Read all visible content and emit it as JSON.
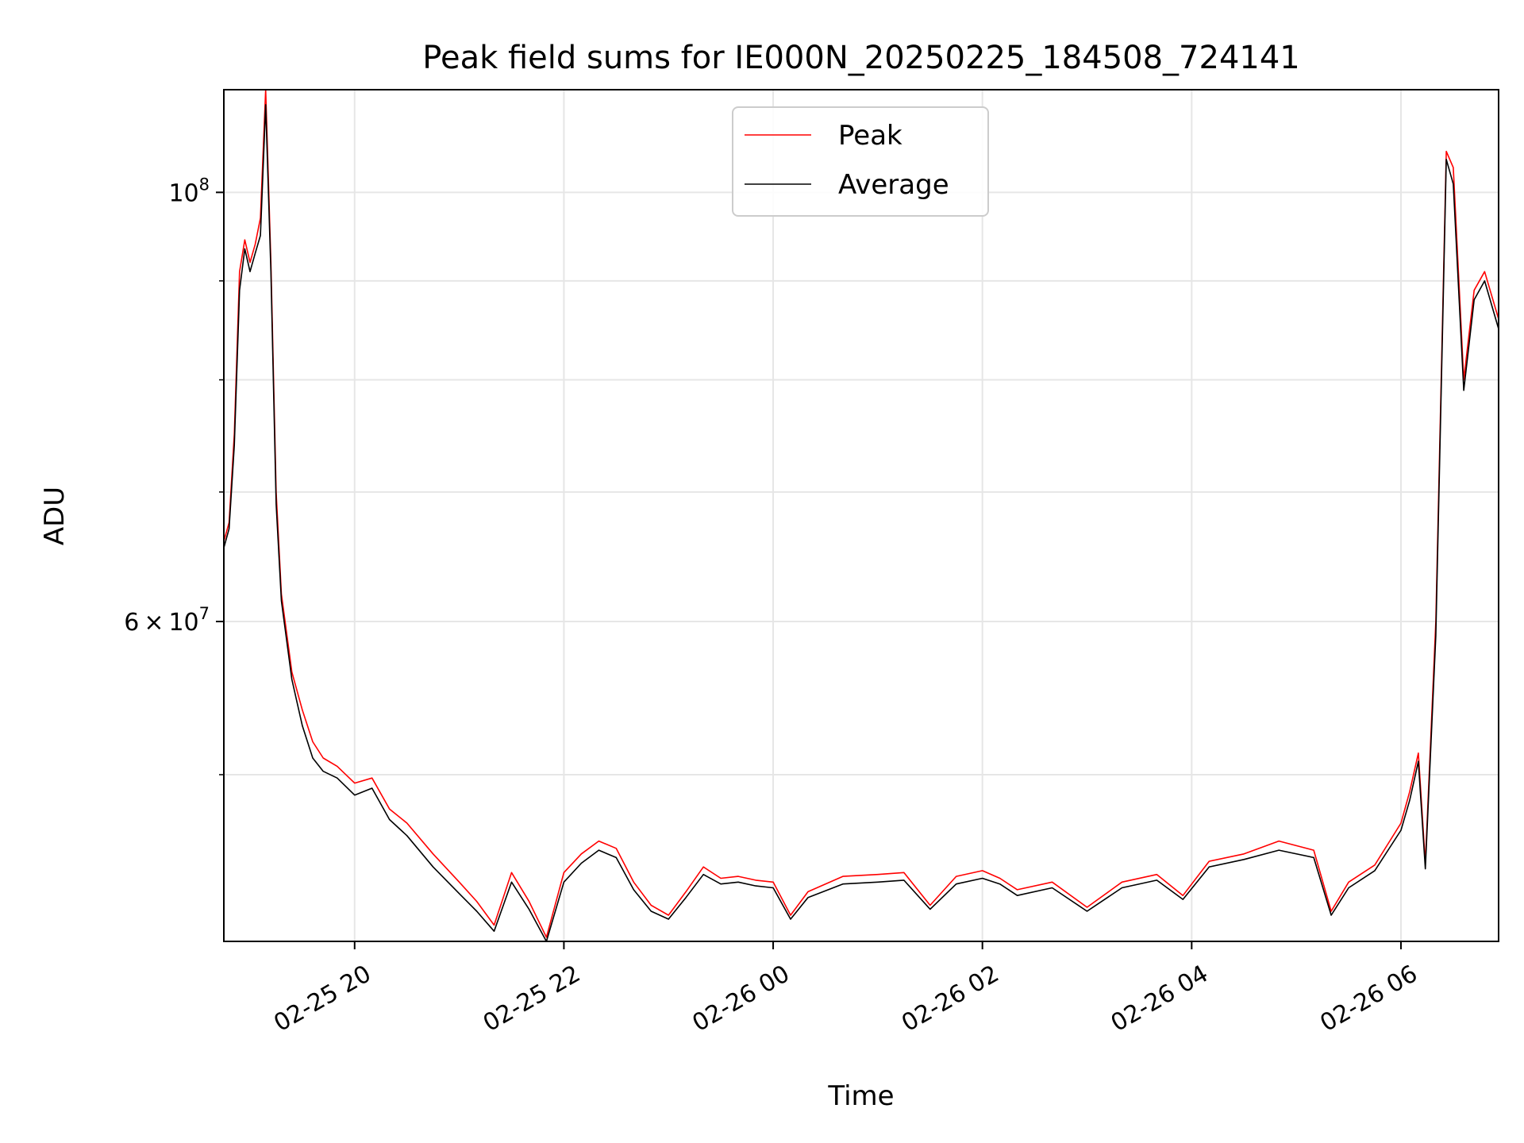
{
  "chart_data": {
    "type": "line",
    "title": "Peak field sums for IE000N_20250225_184508_724141",
    "xlabel": "Time",
    "ylabel": "ADU",
    "y_scale": "log",
    "grid": true,
    "legend_placement": "upper-center",
    "xlim": [
      "2025-02-25 18:45",
      "2025-02-26 06:56"
    ],
    "ylim": [
      41000000,
      113000000
    ],
    "x_ticks": [
      {
        "value": "2025-02-25 20:00",
        "label": "02-25 20"
      },
      {
        "value": "2025-02-25 22:00",
        "label": "02-25 22"
      },
      {
        "value": "2025-02-26 00:00",
        "label": "02-26 00"
      },
      {
        "value": "2025-02-26 02:00",
        "label": "02-26 02"
      },
      {
        "value": "2025-02-26 04:00",
        "label": "02-26 04"
      },
      {
        "value": "2025-02-26 06:00",
        "label": "02-26 06"
      }
    ],
    "y_major_ticks": [
      {
        "value": 100000000,
        "base": "10",
        "exp": "8"
      },
      {
        "value": 60000000,
        "base": "6 × 10",
        "exp": "7"
      }
    ],
    "y_minor_ticks": [
      50000000,
      70000000,
      80000000,
      90000000
    ],
    "series": [
      {
        "name": "Peak",
        "color": "#ff0000",
        "points": [
          [
            "2025-02-25 18:45",
            66000000
          ],
          [
            "2025-02-25 18:48",
            67500000
          ],
          [
            "2025-02-25 18:51",
            75000000
          ],
          [
            "2025-02-25 18:54",
            91000000
          ],
          [
            "2025-02-25 18:57",
            94500000
          ],
          [
            "2025-02-25 19:00",
            92000000
          ],
          [
            "2025-02-25 19:03",
            94000000
          ],
          [
            "2025-02-25 19:06",
            97000000
          ],
          [
            "2025-02-25 19:09",
            113000000
          ],
          [
            "2025-02-25 19:12",
            92000000
          ],
          [
            "2025-02-25 19:15",
            70000000
          ],
          [
            "2025-02-25 19:18",
            62000000
          ],
          [
            "2025-02-25 19:24",
            56500000
          ],
          [
            "2025-02-25 19:30",
            54000000
          ],
          [
            "2025-02-25 19:36",
            52000000
          ],
          [
            "2025-02-25 19:42",
            51000000
          ],
          [
            "2025-02-25 19:50",
            50500000
          ],
          [
            "2025-02-25 20:00",
            49500000
          ],
          [
            "2025-02-25 20:10",
            49800000
          ],
          [
            "2025-02-25 20:20",
            48000000
          ],
          [
            "2025-02-25 20:30",
            47200000
          ],
          [
            "2025-02-25 20:45",
            45500000
          ],
          [
            "2025-02-25 21:00",
            44000000
          ],
          [
            "2025-02-25 21:10",
            43000000
          ],
          [
            "2025-02-25 21:20",
            41800000
          ],
          [
            "2025-02-25 21:30",
            44500000
          ],
          [
            "2025-02-25 21:40",
            43000000
          ],
          [
            "2025-02-25 21:50",
            41200000
          ],
          [
            "2025-02-25 22:00",
            44500000
          ],
          [
            "2025-02-25 22:10",
            45500000
          ],
          [
            "2025-02-25 22:20",
            46200000
          ],
          [
            "2025-02-25 22:30",
            45800000
          ],
          [
            "2025-02-25 22:40",
            44000000
          ],
          [
            "2025-02-25 22:50",
            42800000
          ],
          [
            "2025-02-25 23:00",
            42300000
          ],
          [
            "2025-02-25 23:10",
            43500000
          ],
          [
            "2025-02-25 23:20",
            44800000
          ],
          [
            "2025-02-25 23:30",
            44200000
          ],
          [
            "2025-02-25 23:40",
            44300000
          ],
          [
            "2025-02-25 23:50",
            44100000
          ],
          [
            "2025-02-26 00:00",
            44000000
          ],
          [
            "2025-02-26 00:10",
            42300000
          ],
          [
            "2025-02-26 00:20",
            43500000
          ],
          [
            "2025-02-26 00:40",
            44300000
          ],
          [
            "2025-02-26 01:00",
            44400000
          ],
          [
            "2025-02-26 01:15",
            44500000
          ],
          [
            "2025-02-26 01:30",
            42800000
          ],
          [
            "2025-02-26 01:45",
            44300000
          ],
          [
            "2025-02-26 02:00",
            44600000
          ],
          [
            "2025-02-26 02:10",
            44200000
          ],
          [
            "2025-02-26 02:20",
            43600000
          ],
          [
            "2025-02-26 02:40",
            44000000
          ],
          [
            "2025-02-26 03:00",
            42700000
          ],
          [
            "2025-02-26 03:20",
            44000000
          ],
          [
            "2025-02-26 03:40",
            44400000
          ],
          [
            "2025-02-26 03:55",
            43300000
          ],
          [
            "2025-02-26 04:10",
            45100000
          ],
          [
            "2025-02-26 04:30",
            45500000
          ],
          [
            "2025-02-26 04:50",
            46200000
          ],
          [
            "2025-02-26 05:10",
            45700000
          ],
          [
            "2025-02-26 05:20",
            42500000
          ],
          [
            "2025-02-26 05:30",
            44000000
          ],
          [
            "2025-02-26 05:45",
            44900000
          ],
          [
            "2025-02-26 06:00",
            47200000
          ],
          [
            "2025-02-26 06:05",
            49000000
          ],
          [
            "2025-02-26 06:10",
            51300000
          ],
          [
            "2025-02-26 06:14",
            45000000
          ],
          [
            "2025-02-26 06:20",
            60000000
          ],
          [
            "2025-02-26 06:26",
            105000000
          ],
          [
            "2025-02-26 06:30",
            103000000
          ],
          [
            "2025-02-26 06:36",
            80000000
          ],
          [
            "2025-02-26 06:42",
            89000000
          ],
          [
            "2025-02-26 06:48",
            91000000
          ],
          [
            "2025-02-26 06:56",
            86000000
          ]
        ]
      },
      {
        "name": "Average",
        "color": "#000000",
        "points": [
          [
            "2025-02-25 18:45",
            65500000
          ],
          [
            "2025-02-25 18:48",
            67000000
          ],
          [
            "2025-02-25 18:51",
            74000000
          ],
          [
            "2025-02-25 18:54",
            89000000
          ],
          [
            "2025-02-25 18:57",
            93500000
          ],
          [
            "2025-02-25 19:00",
            91000000
          ],
          [
            "2025-02-25 19:03",
            93000000
          ],
          [
            "2025-02-25 19:06",
            95000000
          ],
          [
            "2025-02-25 19:09",
            111000000
          ],
          [
            "2025-02-25 19:12",
            91000000
          ],
          [
            "2025-02-25 19:15",
            69000000
          ],
          [
            "2025-02-25 19:18",
            61500000
          ],
          [
            "2025-02-25 19:24",
            56000000
          ],
          [
            "2025-02-25 19:30",
            53000000
          ],
          [
            "2025-02-25 19:36",
            51000000
          ],
          [
            "2025-02-25 19:42",
            50200000
          ],
          [
            "2025-02-25 19:50",
            49800000
          ],
          [
            "2025-02-25 20:00",
            48800000
          ],
          [
            "2025-02-25 20:10",
            49200000
          ],
          [
            "2025-02-25 20:20",
            47400000
          ],
          [
            "2025-02-25 20:30",
            46500000
          ],
          [
            "2025-02-25 20:45",
            44800000
          ],
          [
            "2025-02-25 21:00",
            43400000
          ],
          [
            "2025-02-25 21:10",
            42500000
          ],
          [
            "2025-02-25 21:20",
            41500000
          ],
          [
            "2025-02-25 21:30",
            44000000
          ],
          [
            "2025-02-25 21:40",
            42600000
          ],
          [
            "2025-02-25 21:50",
            41000000
          ],
          [
            "2025-02-25 22:00",
            44000000
          ],
          [
            "2025-02-25 22:10",
            45000000
          ],
          [
            "2025-02-25 22:20",
            45700000
          ],
          [
            "2025-02-25 22:30",
            45300000
          ],
          [
            "2025-02-25 22:40",
            43600000
          ],
          [
            "2025-02-25 22:50",
            42500000
          ],
          [
            "2025-02-25 23:00",
            42100000
          ],
          [
            "2025-02-25 23:10",
            43200000
          ],
          [
            "2025-02-25 23:20",
            44400000
          ],
          [
            "2025-02-25 23:30",
            43900000
          ],
          [
            "2025-02-25 23:40",
            44000000
          ],
          [
            "2025-02-25 23:50",
            43800000
          ],
          [
            "2025-02-26 00:00",
            43700000
          ],
          [
            "2025-02-26 00:10",
            42100000
          ],
          [
            "2025-02-26 00:20",
            43200000
          ],
          [
            "2025-02-26 00:40",
            43900000
          ],
          [
            "2025-02-26 01:00",
            44000000
          ],
          [
            "2025-02-26 01:15",
            44100000
          ],
          [
            "2025-02-26 01:30",
            42600000
          ],
          [
            "2025-02-26 01:45",
            43900000
          ],
          [
            "2025-02-26 02:00",
            44200000
          ],
          [
            "2025-02-26 02:10",
            43900000
          ],
          [
            "2025-02-26 02:20",
            43300000
          ],
          [
            "2025-02-26 02:40",
            43700000
          ],
          [
            "2025-02-26 03:00",
            42500000
          ],
          [
            "2025-02-26 03:20",
            43700000
          ],
          [
            "2025-02-26 03:40",
            44100000
          ],
          [
            "2025-02-26 03:55",
            43100000
          ],
          [
            "2025-02-26 04:10",
            44800000
          ],
          [
            "2025-02-26 04:30",
            45200000
          ],
          [
            "2025-02-26 04:50",
            45700000
          ],
          [
            "2025-02-26 05:10",
            45300000
          ],
          [
            "2025-02-26 05:20",
            42300000
          ],
          [
            "2025-02-26 05:30",
            43700000
          ],
          [
            "2025-02-26 05:45",
            44600000
          ],
          [
            "2025-02-26 06:00",
            46800000
          ],
          [
            "2025-02-26 06:05",
            48500000
          ],
          [
            "2025-02-26 06:10",
            50800000
          ],
          [
            "2025-02-26 06:14",
            44700000
          ],
          [
            "2025-02-26 06:20",
            59000000
          ],
          [
            "2025-02-26 06:26",
            104000000
          ],
          [
            "2025-02-26 06:30",
            101000000
          ],
          [
            "2025-02-26 06:36",
            79000000
          ],
          [
            "2025-02-26 06:42",
            88000000
          ],
          [
            "2025-02-26 06:48",
            90000000
          ],
          [
            "2025-02-26 06:56",
            85000000
          ]
        ]
      }
    ]
  }
}
